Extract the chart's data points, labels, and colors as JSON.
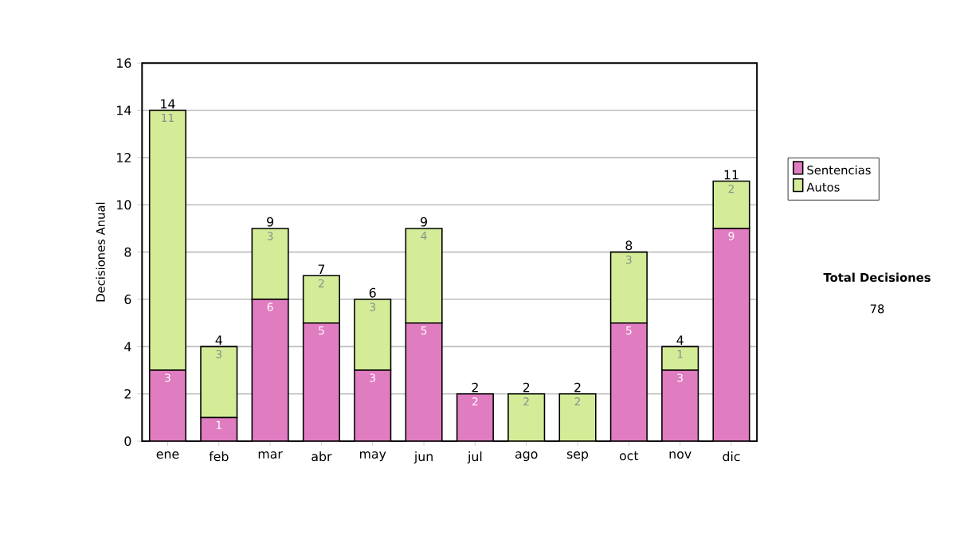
{
  "chart_data": {
    "type": "bar",
    "stacked": true,
    "ylabel": "Decisiones Anual",
    "categories": [
      "ene",
      "feb",
      "mar",
      "abr",
      "may",
      "jun",
      "jul",
      "ago",
      "sep",
      "oct",
      "nov",
      "dic"
    ],
    "series": [
      {
        "name": "Sentencias",
        "color": "#e07cc0",
        "values": [
          3,
          1,
          6,
          5,
          3,
          5,
          2,
          0,
          0,
          5,
          3,
          9
        ],
        "value_labels": [
          "3",
          "1",
          "6",
          "5",
          "3",
          "5",
          "2",
          null,
          null,
          "5",
          "3",
          "9"
        ]
      },
      {
        "name": "Autos",
        "color": "#d4ec98",
        "values": [
          11,
          3,
          3,
          2,
          3,
          4,
          0,
          2,
          2,
          3,
          1,
          2
        ],
        "value_labels": [
          "11",
          "3",
          "3",
          "2",
          "3",
          "4",
          null,
          "2",
          "2",
          "3",
          "1",
          "2"
        ]
      }
    ],
    "totals": [
      "14",
      "4",
      "9",
      "7",
      "6",
      "9",
      "2",
      "2",
      "2",
      "8",
      "4",
      "11"
    ],
    "ylim": [
      0,
      16
    ],
    "yticks": [
      0,
      2,
      4,
      6,
      8,
      10,
      12,
      14,
      16
    ],
    "grid": "y",
    "legend": "right",
    "annotations": [
      "Total Decisiones",
      "78"
    ]
  }
}
